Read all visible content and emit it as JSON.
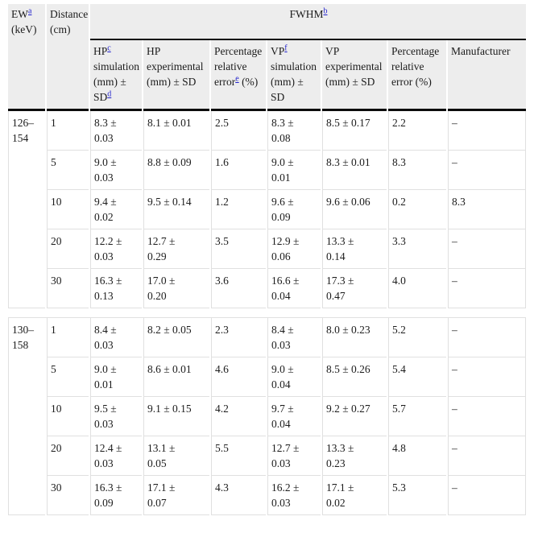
{
  "colors": {
    "header_background": "#ededed",
    "grid_line": "#e0e0e0",
    "heavy_rule": "#0c0c0c",
    "footnote_link": "#2222cc",
    "text": "#1c1c1c"
  },
  "table": {
    "header": {
      "ew": {
        "pre": "EW",
        "sup": "a",
        "post": "\n(keV)"
      },
      "distance": {
        "text": "Distance\n(cm)"
      },
      "fwhm": {
        "pre": "FWHM",
        "sup": "b"
      },
      "sub": [
        {
          "pre": "HP",
          "sup": "c",
          "mid": "\nsimulation\n(mm) ±\nSD",
          "sup2": "d"
        },
        {
          "pre": "HP\nexperimental\n(mm) ± SD"
        },
        {
          "pre": "Percentage\nrelative\nerror",
          "sup": "e",
          "mid": " (%)"
        },
        {
          "pre": "VP",
          "sup": "f",
          "mid": "\nsimulation\n(mm) ±\nSD"
        },
        {
          "pre": "VP\nexperimental\n(mm) ± SD"
        },
        {
          "pre": "Percentage\nrelative\nerror (%)"
        },
        {
          "pre": "Manufacturer"
        }
      ]
    },
    "sections": [
      {
        "ew": "126–\n154",
        "rows": [
          [
            "1",
            "8.3 ±\n0.03",
            "8.1 ± 0.01",
            "2.5",
            "8.3 ±\n0.08",
            "8.5 ± 0.17",
            "2.2",
            "–"
          ],
          [
            "5",
            "9.0 ±\n0.03",
            "8.8 ± 0.09",
            "1.6",
            "9.0 ±\n0.01",
            "8.3 ± 0.01",
            "8.3",
            "–"
          ],
          [
            "10",
            "9.4 ±\n0.02",
            "9.5 ± 0.14",
            "1.2",
            "9.6 ±\n0.09",
            "9.6 ± 0.06",
            "0.2",
            "8.3"
          ],
          [
            "20",
            "12.2 ±\n0.03",
            "12.7 ±\n0.29",
            "3.5",
            "12.9 ±\n0.06",
            "13.3 ±\n0.14",
            "3.3",
            "–"
          ],
          [
            "30",
            "16.3 ±\n0.13",
            "17.0 ±\n0.20",
            "3.6",
            "16.6 ±\n0.04",
            "17.3 ±\n0.47",
            "4.0",
            "–"
          ]
        ]
      },
      {
        "ew": "130–\n158",
        "rows": [
          [
            "1",
            "8.4 ±\n0.03",
            "8.2 ± 0.05",
            "2.3",
            "8.4 ±\n0.03",
            "8.0 ± 0.23",
            "5.2",
            "–"
          ],
          [
            "5",
            "9.0 ±\n0.01",
            "8.6 ± 0.01",
            "4.6",
            "9.0 ±\n0.04",
            "8.5 ± 0.26",
            "5.4",
            "–"
          ],
          [
            "10",
            "9.5 ±\n0.03",
            "9.1 ± 0.15",
            "4.2",
            "9.7 ±\n0.04",
            "9.2 ± 0.27",
            "5.7",
            "–"
          ],
          [
            "20",
            "12.4 ±\n0.03",
            "13.1 ±\n0.05",
            "5.5",
            "12.7 ±\n0.03",
            "13.3 ±\n0.23",
            "4.8",
            "–"
          ],
          [
            "30",
            "16.3 ±\n0.09",
            "17.1 ±\n0.07",
            "4.3",
            "16.2 ±\n0.03",
            "17.1 ±\n0.02",
            "5.3",
            "–"
          ]
        ]
      }
    ]
  }
}
